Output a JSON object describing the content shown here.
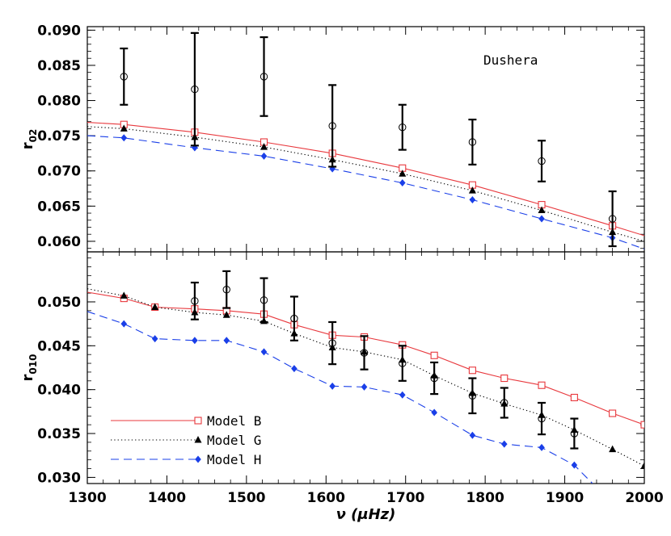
{
  "chart_data": [
    {
      "type": "line",
      "panel": "top",
      "annotation": "Dushera",
      "ylabel": "r",
      "ylabel_sub": "02",
      "xlim": [
        1300,
        2000
      ],
      "ylim": [
        0.0585,
        0.0905
      ],
      "yticks": [
        0.06,
        0.065,
        0.07,
        0.075,
        0.08,
        0.085,
        0.09
      ],
      "ytick_labels": [
        "0.060",
        "0.065",
        "0.070",
        "0.075",
        "0.080",
        "0.085",
        "0.090"
      ],
      "series": [
        {
          "name": "Model B",
          "color": "#e8383d",
          "dash": "solid",
          "marker": "open-square",
          "line_x": [
            1300,
            1346,
            1435,
            1522,
            1608,
            1696,
            1784,
            1871,
            1960,
            2000
          ],
          "line_y": [
            0.0769,
            0.0766,
            0.0755,
            0.0741,
            0.0725,
            0.0704,
            0.068,
            0.0652,
            0.0622,
            0.0608
          ],
          "x": [
            1346,
            1435,
            1522,
            1608,
            1696,
            1784,
            1871,
            1960
          ],
          "y": [
            0.0766,
            0.0755,
            0.0741,
            0.0725,
            0.0704,
            0.068,
            0.0652,
            0.0622
          ]
        },
        {
          "name": "Model G",
          "color": "#000000",
          "dash": "dotted",
          "marker": "filled-triangle",
          "line_x": [
            1300,
            1346,
            1435,
            1522,
            1608,
            1696,
            1784,
            1871,
            1960,
            2000
          ],
          "line_y": [
            0.0763,
            0.076,
            0.0748,
            0.0734,
            0.0716,
            0.0696,
            0.0672,
            0.0644,
            0.0613,
            0.06
          ],
          "x": [
            1346,
            1435,
            1522,
            1608,
            1696,
            1784,
            1871,
            1960
          ],
          "y": [
            0.076,
            0.0748,
            0.0734,
            0.0716,
            0.0696,
            0.0672,
            0.0644,
            0.0613
          ]
        },
        {
          "name": "Model H",
          "color": "#1a3fe8",
          "dash": "dashed",
          "marker": "filled-diamond",
          "line_x": [
            1300,
            1346,
            1435,
            1522,
            1608,
            1696,
            1784,
            1871,
            1960,
            2000
          ],
          "line_y": [
            0.075,
            0.0747,
            0.0733,
            0.0721,
            0.0703,
            0.0683,
            0.0659,
            0.0632,
            0.0605,
            0.0589
          ],
          "x": [
            1346,
            1435,
            1522,
            1608,
            1696,
            1784,
            1871,
            1960
          ],
          "y": [
            0.0747,
            0.0733,
            0.0721,
            0.0703,
            0.0683,
            0.0659,
            0.0632,
            0.0605
          ]
        }
      ],
      "observations": {
        "marker": "open-circle",
        "x": [
          1346,
          1435,
          1522,
          1608,
          1696,
          1784,
          1871,
          1960
        ],
        "y": [
          0.0834,
          0.0816,
          0.0834,
          0.0764,
          0.0762,
          0.0741,
          0.0714,
          0.0632
        ],
        "err": [
          0.004,
          0.008,
          0.0056,
          0.0058,
          0.0032,
          0.0032,
          0.0029,
          0.0039
        ]
      }
    },
    {
      "type": "line",
      "panel": "bottom",
      "xlabel": "ν (μHz)",
      "ylabel": "r",
      "ylabel_sub": "010",
      "xlim": [
        1300,
        2000
      ],
      "ylim": [
        0.0293,
        0.0557
      ],
      "xticks": [
        1300,
        1400,
        1500,
        1600,
        1700,
        1800,
        1900,
        2000
      ],
      "xtick_labels": [
        "1300",
        "1400",
        "1500",
        "1600",
        "1700",
        "1800",
        "1900",
        "2000"
      ],
      "yticks": [
        0.03,
        0.035,
        0.04,
        0.045,
        0.05
      ],
      "ytick_labels": [
        "0.030",
        "0.035",
        "0.040",
        "0.045",
        "0.050"
      ],
      "series": [
        {
          "name": "Model B",
          "color": "#e8383d",
          "dash": "solid",
          "marker": "open-square",
          "line_x": [
            1300,
            1346,
            1385,
            1435,
            1475,
            1522,
            1560,
            1608,
            1648,
            1696,
            1736,
            1784,
            1824,
            1871,
            1912,
            1960,
            2000
          ],
          "line_y": [
            0.0511,
            0.0504,
            0.0494,
            0.0492,
            0.049,
            0.0486,
            0.0474,
            0.0462,
            0.046,
            0.0451,
            0.0439,
            0.0422,
            0.0413,
            0.0405,
            0.0391,
            0.0373,
            0.036
          ],
          "x": [
            1346,
            1385,
            1435,
            1475,
            1522,
            1560,
            1608,
            1648,
            1696,
            1736,
            1784,
            1824,
            1871,
            1912,
            1960,
            2000
          ],
          "y": [
            0.0504,
            0.0494,
            0.0492,
            0.049,
            0.0486,
            0.0474,
            0.0462,
            0.046,
            0.0451,
            0.0439,
            0.0422,
            0.0413,
            0.0405,
            0.0391,
            0.0373,
            0.036
          ]
        },
        {
          "name": "Model G",
          "color": "#000000",
          "dash": "dotted",
          "marker": "filled-triangle",
          "line_x": [
            1300,
            1346,
            1385,
            1435,
            1475,
            1522,
            1560,
            1608,
            1648,
            1696,
            1736,
            1784,
            1824,
            1871,
            1912,
            1960,
            2000
          ],
          "line_y": [
            0.0515,
            0.0507,
            0.0494,
            0.0488,
            0.0485,
            0.0478,
            0.0464,
            0.0448,
            0.0443,
            0.0434,
            0.0416,
            0.0396,
            0.0384,
            0.0371,
            0.0354,
            0.0332,
            0.0313
          ],
          "x": [
            1346,
            1385,
            1435,
            1475,
            1522,
            1560,
            1608,
            1648,
            1696,
            1736,
            1784,
            1824,
            1871,
            1912,
            1960,
            2000
          ],
          "y": [
            0.0507,
            0.0494,
            0.0488,
            0.0485,
            0.0478,
            0.0464,
            0.0448,
            0.0443,
            0.0434,
            0.0416,
            0.0396,
            0.0384,
            0.0371,
            0.0354,
            0.0332,
            0.0313
          ]
        },
        {
          "name": "Model H",
          "color": "#1a3fe8",
          "dash": "dashed",
          "marker": "filled-diamond",
          "line_x": [
            1300,
            1346,
            1385,
            1435,
            1475,
            1522,
            1560,
            1608,
            1648,
            1696,
            1736,
            1784,
            1824,
            1871,
            1912,
            1935
          ],
          "line_y": [
            0.0489,
            0.0475,
            0.0458,
            0.0456,
            0.0456,
            0.0443,
            0.0424,
            0.0404,
            0.0403,
            0.0394,
            0.0374,
            0.0348,
            0.0338,
            0.0334,
            0.0314,
            0.0293
          ],
          "x": [
            1346,
            1385,
            1435,
            1475,
            1522,
            1560,
            1608,
            1648,
            1696,
            1736,
            1784,
            1824,
            1871,
            1912
          ],
          "y": [
            0.0475,
            0.0458,
            0.0456,
            0.0456,
            0.0443,
            0.0424,
            0.0404,
            0.0403,
            0.0394,
            0.0374,
            0.0348,
            0.0338,
            0.0334,
            0.0314
          ]
        }
      ],
      "observations": {
        "marker": "open-circle",
        "x": [
          1435,
          1475,
          1522,
          1560,
          1608,
          1648,
          1696,
          1736,
          1784,
          1824,
          1871,
          1912
        ],
        "y": [
          0.0501,
          0.0514,
          0.0502,
          0.0481,
          0.0453,
          0.0442,
          0.043,
          0.0413,
          0.0393,
          0.0385,
          0.0367,
          0.035
        ],
        "err": [
          0.0021,
          0.0021,
          0.0025,
          0.0025,
          0.0024,
          0.0019,
          0.002,
          0.0018,
          0.002,
          0.0017,
          0.0018,
          0.0017
        ]
      },
      "legend": {
        "placement": "bottom-left",
        "entries": [
          "Model B",
          "Model G",
          "Model H"
        ]
      }
    }
  ]
}
